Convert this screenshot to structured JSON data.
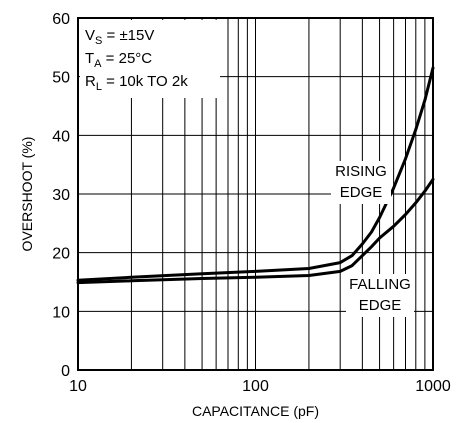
{
  "chart_data": {
    "type": "line",
    "xscale": "log",
    "xlim": [
      10,
      1000
    ],
    "ylim": [
      0,
      60
    ],
    "grid": true,
    "xlabel": "CAPACITANCE (pF)",
    "ylabel": "OVERSHOOT (%)",
    "xticks": [
      "10",
      "100",
      "1000"
    ],
    "yticks": [
      "0",
      "10",
      "20",
      "30",
      "40",
      "50",
      "60"
    ],
    "conditions": [
      {
        "main": "V",
        "sub": "S",
        "rest": " = ±15V"
      },
      {
        "main": "T",
        "sub": "A",
        "rest": " = 25°C"
      },
      {
        "main": "R",
        "sub": "L",
        "rest": " = 10k TO 2k"
      }
    ],
    "annotations": [
      {
        "lines": [
          "RISING",
          "EDGE"
        ]
      },
      {
        "lines": [
          "FALLING",
          "EDGE"
        ]
      }
    ],
    "series": [
      {
        "label_ref": "RISING EDGE",
        "x": [
          10,
          20,
          50,
          100,
          200,
          300,
          350,
          400,
          450,
          500,
          600,
          700,
          800,
          900,
          1000
        ],
        "y": [
          15.3,
          15.8,
          16.4,
          16.8,
          17.3,
          18.3,
          19.5,
          21.5,
          23.5,
          26,
          31,
          36,
          41,
          46,
          51.5
        ]
      },
      {
        "label_ref": "FALLING EDGE",
        "x": [
          10,
          20,
          50,
          100,
          200,
          300,
          350,
          400,
          450,
          500,
          600,
          700,
          800,
          900,
          1000
        ],
        "y": [
          14.9,
          15.2,
          15.6,
          15.8,
          16.1,
          16.8,
          17.8,
          19.5,
          21,
          22.5,
          24.5,
          26.5,
          28.5,
          30.5,
          32.5
        ]
      }
    ]
  }
}
